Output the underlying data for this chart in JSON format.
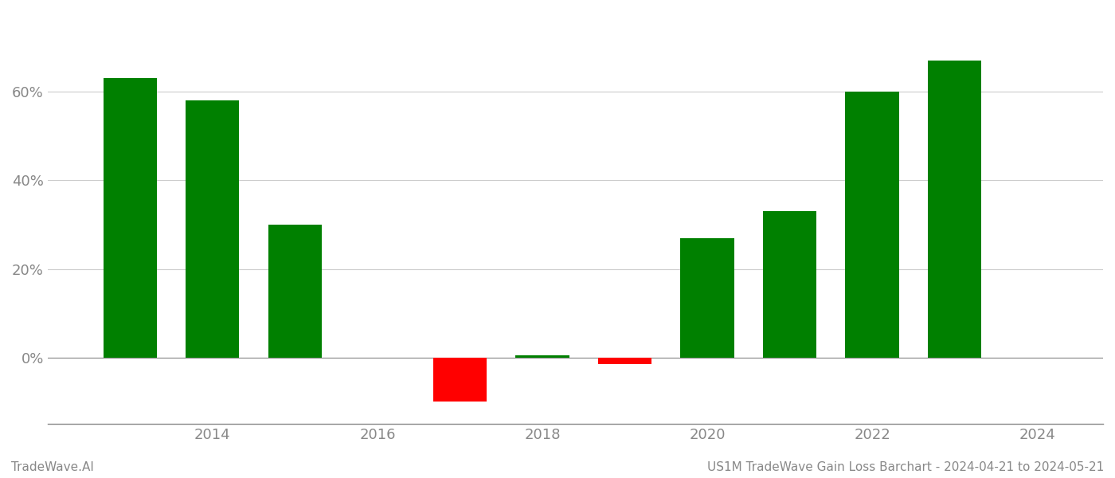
{
  "years": [
    2013,
    2014,
    2015,
    2017,
    2018,
    2019,
    2020,
    2021,
    2022,
    2023
  ],
  "values": [
    0.63,
    0.58,
    0.3,
    -0.1,
    0.005,
    -0.015,
    0.27,
    0.33,
    0.6,
    0.67
  ],
  "bar_colors": [
    "#008000",
    "#008000",
    "#008000",
    "#ff0000",
    "#008000",
    "#ff0000",
    "#008000",
    "#008000",
    "#008000",
    "#008000"
  ],
  "footer_left": "TradeWave.AI",
  "footer_right": "US1M TradeWave Gain Loss Barchart - 2024-04-21 to 2024-05-21",
  "background_color": "#ffffff",
  "grid_color": "#cccccc",
  "axis_color": "#888888",
  "tick_color": "#888888",
  "xticks": [
    2014,
    2016,
    2018,
    2020,
    2022,
    2024
  ],
  "xtick_labels": [
    "2014",
    "2016",
    "2018",
    "2020",
    "2022",
    "2024"
  ],
  "yticks": [
    0.0,
    0.2,
    0.4,
    0.6
  ],
  "ylim_min": -0.15,
  "ylim_max": 0.78,
  "xlim_min": 2012.0,
  "xlim_max": 2024.8,
  "bar_width": 0.65
}
